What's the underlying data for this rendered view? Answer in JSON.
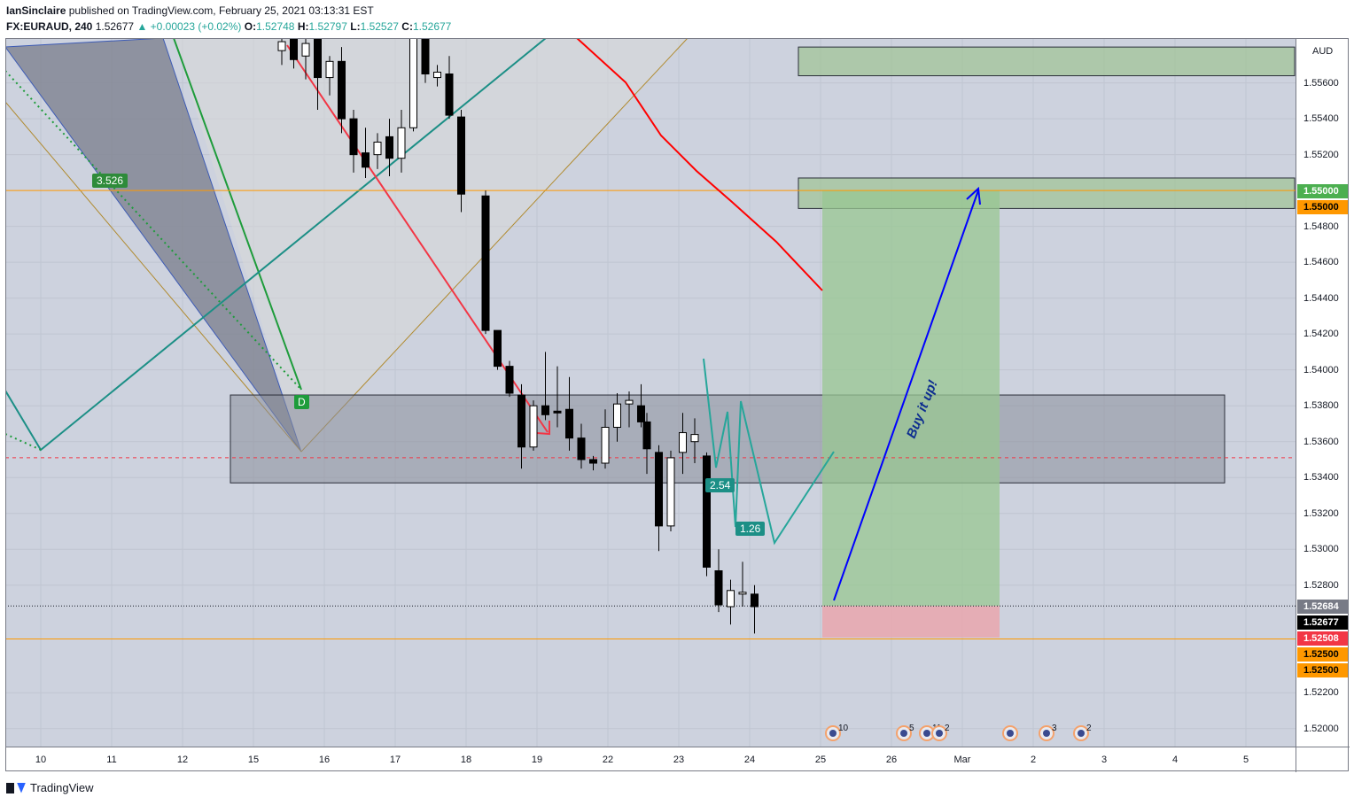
{
  "header": {
    "author": "IanSinclaire",
    "published": "published on TradingView.com, February 25, 2021 03:13:31 EST",
    "symbol": "FX:EURAUD, 240",
    "last": "1.52677",
    "change": "▲ +0.00023 (+0.02%)",
    "o_label": "O:",
    "o_value": "1.52748",
    "h_label": "H:",
    "h_value": "1.52797",
    "l_label": "L:",
    "l_value": "1.52527",
    "c_label": "C:",
    "c_value": "1.52677"
  },
  "footer": {
    "brand": "TradingView"
  },
  "colors": {
    "bg": "#cdd2de",
    "up": "#ffffff",
    "down": "#000000",
    "target_zone": "#98c792",
    "stop_zone": "#e8a8b0",
    "ma": "#ff0000",
    "orange_line": "#ff9800",
    "arrow_blue": "#0000ff",
    "teal": "#26a69a"
  },
  "annotations": {
    "harmonic_ratio_1": "3.526",
    "harmonic_point": "D",
    "ratio_2": "2.54",
    "ratio_3": "1.26",
    "buy_text": "Buy it up!",
    "events": [
      "10",
      "5",
      "11",
      "2",
      "3",
      "2"
    ]
  },
  "chart_data": {
    "type": "candlestick",
    "symbol": "FX:EURAUD",
    "timeframe": "240",
    "unit": "AUD",
    "ylim": [
      1.519,
      1.5585
    ],
    "yticks": [
      "1.55600",
      "1.55400",
      "1.55200",
      "1.54800",
      "1.54600",
      "1.54400",
      "1.54200",
      "1.54000",
      "1.53800",
      "1.53600",
      "1.53400",
      "1.53200",
      "1.53000",
      "1.52800",
      "1.52200",
      "1.52000"
    ],
    "xticks": [
      "10",
      "11",
      "12",
      "15",
      "16",
      "17",
      "18",
      "19",
      "22",
      "23",
      "24",
      "25",
      "26",
      "Mar",
      "2",
      "3",
      "4",
      "5"
    ],
    "price_tags": [
      {
        "text": "1.55000",
        "bg": "#4caf50",
        "fg": "#ffffff"
      },
      {
        "text": "1.55000",
        "bg": "#ff9800",
        "fg": "#000000"
      },
      {
        "text": "1.52684",
        "bg": "#787b86",
        "fg": "#ffffff"
      },
      {
        "text": "1.52677",
        "bg": "#000000",
        "fg": "#ffffff"
      },
      {
        "text": "1.52508",
        "bg": "#f23645",
        "fg": "#ffffff"
      },
      {
        "text": "1.52500",
        "bg": "#ff9800",
        "fg": "#000000"
      },
      {
        "text": "1.52500",
        "bg": "#ff9800",
        "fg": "#000000"
      }
    ],
    "candles": [
      {
        "i": 0,
        "o": 1.5578,
        "h": 1.5592,
        "l": 1.557,
        "c": 1.5583
      },
      {
        "i": 1,
        "o": 1.5585,
        "h": 1.559,
        "l": 1.5568,
        "c": 1.5573
      },
      {
        "i": 2,
        "o": 1.5575,
        "h": 1.5585,
        "l": 1.5562,
        "c": 1.5582
      },
      {
        "i": 3,
        "o": 1.5595,
        "h": 1.56,
        "l": 1.5545,
        "c": 1.5563
      },
      {
        "i": 4,
        "o": 1.5563,
        "h": 1.5575,
        "l": 1.5553,
        "c": 1.5572
      },
      {
        "i": 5,
        "o": 1.5572,
        "h": 1.558,
        "l": 1.5532,
        "c": 1.554
      },
      {
        "i": 6,
        "o": 1.554,
        "h": 1.5545,
        "l": 1.551,
        "c": 1.552
      },
      {
        "i": 7,
        "o": 1.5521,
        "h": 1.5535,
        "l": 1.5507,
        "c": 1.5513
      },
      {
        "i": 8,
        "o": 1.552,
        "h": 1.5532,
        "l": 1.5512,
        "c": 1.5527
      },
      {
        "i": 9,
        "o": 1.553,
        "h": 1.554,
        "l": 1.5508,
        "c": 1.5518
      },
      {
        "i": 10,
        "o": 1.5518,
        "h": 1.5545,
        "l": 1.551,
        "c": 1.5535
      },
      {
        "i": 11,
        "o": 1.5535,
        "h": 1.5595,
        "l": 1.5533,
        "c": 1.5585
      },
      {
        "i": 12,
        "o": 1.5585,
        "h": 1.5592,
        "l": 1.556,
        "c": 1.5565
      },
      {
        "i": 13,
        "o": 1.5563,
        "h": 1.557,
        "l": 1.5558,
        "c": 1.5566
      },
      {
        "i": 14,
        "o": 1.5565,
        "h": 1.5575,
        "l": 1.554,
        "c": 1.5542
      },
      {
        "i": 15,
        "o": 1.5541,
        "h": 1.5545,
        "l": 1.5488,
        "c": 1.5498
      },
      {
        "i": 16,
        "o": 1.5497,
        "h": 1.55,
        "l": 1.542,
        "c": 1.5422
      },
      {
        "i": 17,
        "o": 1.5422,
        "h": 1.5422,
        "l": 1.54,
        "c": 1.5402
      },
      {
        "i": 18,
        "o": 1.5402,
        "h": 1.5405,
        "l": 1.5385,
        "c": 1.5387
      },
      {
        "i": 19,
        "o": 1.5386,
        "h": 1.5392,
        "l": 1.5345,
        "c": 1.5357
      },
      {
        "i": 20,
        "o": 1.5357,
        "h": 1.5383,
        "l": 1.5355,
        "c": 1.538
      },
      {
        "i": 21,
        "o": 1.538,
        "h": 1.541,
        "l": 1.5372,
        "c": 1.5375
      },
      {
        "i": 22,
        "o": 1.5377,
        "h": 1.5402,
        "l": 1.5368,
        "c": 1.5376
      },
      {
        "i": 23,
        "o": 1.5378,
        "h": 1.5396,
        "l": 1.5355,
        "c": 1.5362
      },
      {
        "i": 24,
        "o": 1.5362,
        "h": 1.537,
        "l": 1.5345,
        "c": 1.535
      },
      {
        "i": 25,
        "o": 1.535,
        "h": 1.5352,
        "l": 1.5344,
        "c": 1.5348
      },
      {
        "i": 26,
        "o": 1.5348,
        "h": 1.5378,
        "l": 1.5345,
        "c": 1.5368
      },
      {
        "i": 27,
        "o": 1.5368,
        "h": 1.5387,
        "l": 1.536,
        "c": 1.5381
      },
      {
        "i": 28,
        "o": 1.5381,
        "h": 1.5388,
        "l": 1.5368,
        "c": 1.5383
      },
      {
        "i": 29,
        "o": 1.538,
        "h": 1.5392,
        "l": 1.5368,
        "c": 1.5371
      },
      {
        "i": 30,
        "o": 1.5371,
        "h": 1.5376,
        "l": 1.5342,
        "c": 1.5356
      },
      {
        "i": 31,
        "o": 1.5354,
        "h": 1.5358,
        "l": 1.5299,
        "c": 1.5313
      },
      {
        "i": 32,
        "o": 1.5313,
        "h": 1.5355,
        "l": 1.531,
        "c": 1.5351
      },
      {
        "i": 33,
        "o": 1.5354,
        "h": 1.5376,
        "l": 1.5342,
        "c": 1.5365
      },
      {
        "i": 34,
        "o": 1.536,
        "h": 1.5373,
        "l": 1.5348,
        "c": 1.5364
      },
      {
        "i": 35,
        "o": 1.5352,
        "h": 1.5354,
        "l": 1.5285,
        "c": 1.529
      },
      {
        "i": 36,
        "o": 1.5288,
        "h": 1.53,
        "l": 1.5265,
        "c": 1.5269
      },
      {
        "i": 37,
        "o": 1.5268,
        "h": 1.5283,
        "l": 1.5258,
        "c": 1.5277
      },
      {
        "i": 38,
        "o": 1.5275,
        "h": 1.5293,
        "l": 1.5268,
        "c": 1.5276
      },
      {
        "i": 39,
        "o": 1.5275,
        "h": 1.528,
        "l": 1.5253,
        "c": 1.5268
      }
    ],
    "moving_average": [
      [
        318,
        1.5595
      ],
      [
        355,
        1.5565
      ],
      [
        430,
        1.552
      ],
      [
        540,
        1.547
      ],
      [
        620,
        1.5395
      ],
      [
        710,
        1.5352
      ],
      [
        780,
        1.532
      ],
      [
        820,
        1.5283
      ],
      [
        870,
        1.5254
      ],
      [
        929,
        1.5442
      ]
    ],
    "zones": [
      {
        "name": "top-box",
        "y0": 1.5564,
        "y1": 1.558
      },
      {
        "name": "target-box",
        "y0": 1.549,
        "y1": 1.5507
      },
      {
        "name": "demand-zone",
        "y0": 1.5337,
        "y1": 1.5386
      },
      {
        "name": "profit-area",
        "y0": 1.52684,
        "y1": 1.55
      },
      {
        "name": "stop-area",
        "y0": 1.52508,
        "y1": 1.52684
      }
    ],
    "levels": [
      1.55,
      1.525,
      1.5351,
      1.52684
    ]
  }
}
